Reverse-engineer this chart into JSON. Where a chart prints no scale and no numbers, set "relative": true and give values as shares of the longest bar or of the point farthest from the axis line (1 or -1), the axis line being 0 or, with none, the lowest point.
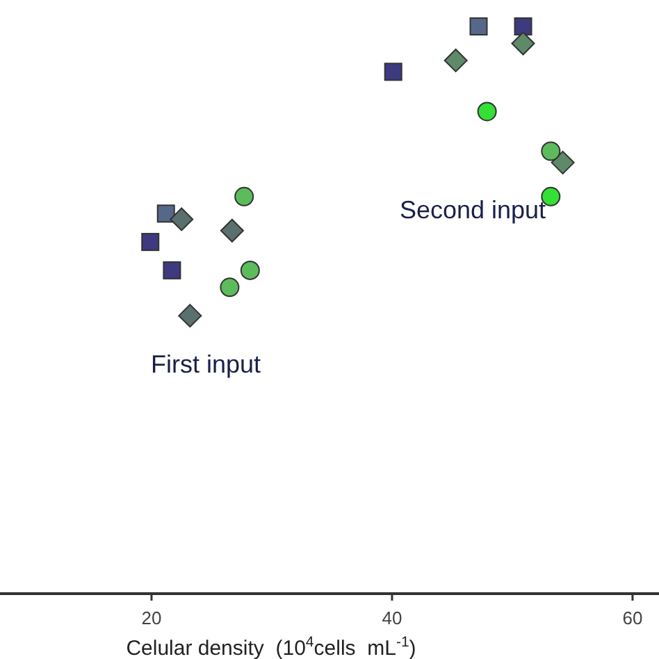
{
  "chart_data": {
    "type": "scatter",
    "xlabel": "Celular density  (10$^{4}$cells  mL$^{-1}$)",
    "xlim": [
      7.4,
      62.2
    ],
    "xticks": [
      20,
      40,
      60
    ],
    "relative": true,
    "grid": false,
    "annotations": [
      "First input",
      "Second input"
    ],
    "series": [
      {
        "marker": "square",
        "colors": [
          "#56688a",
          "#3d3a80",
          "#3d3a80",
          "#3d3a80",
          "#56688a",
          "#3d3a80"
        ],
        "x": [
          21.2,
          19.9,
          21.7,
          40.1,
          47.2,
          50.9
        ],
        "values": [
          0.67,
          0.62,
          0.57,
          0.92,
          1,
          1
        ]
      },
      {
        "marker": "diamond",
        "colors": [
          "#5a706e",
          "#5a706e",
          "#5a706e",
          "#5e8a6a",
          "#5e8a6a",
          "#5e8a6a"
        ],
        "x": [
          22.5,
          26.7,
          23.2,
          45.3,
          50.9,
          54.2
        ],
        "values": [
          0.66,
          0.64,
          0.49,
          0.94,
          0.97,
          0.76
        ]
      },
      {
        "marker": "circle",
        "colors": [
          "#5cbc5c",
          "#5cbc5c",
          "#5cbc5c",
          "#33e033",
          "#5cbc5c",
          "#33e033"
        ],
        "x": [
          27.7,
          28.2,
          26.5,
          47.9,
          53.2,
          53.2
        ],
        "values": [
          0.7,
          0.57,
          0.54,
          0.85,
          0.78,
          0.7
        ]
      }
    ]
  }
}
